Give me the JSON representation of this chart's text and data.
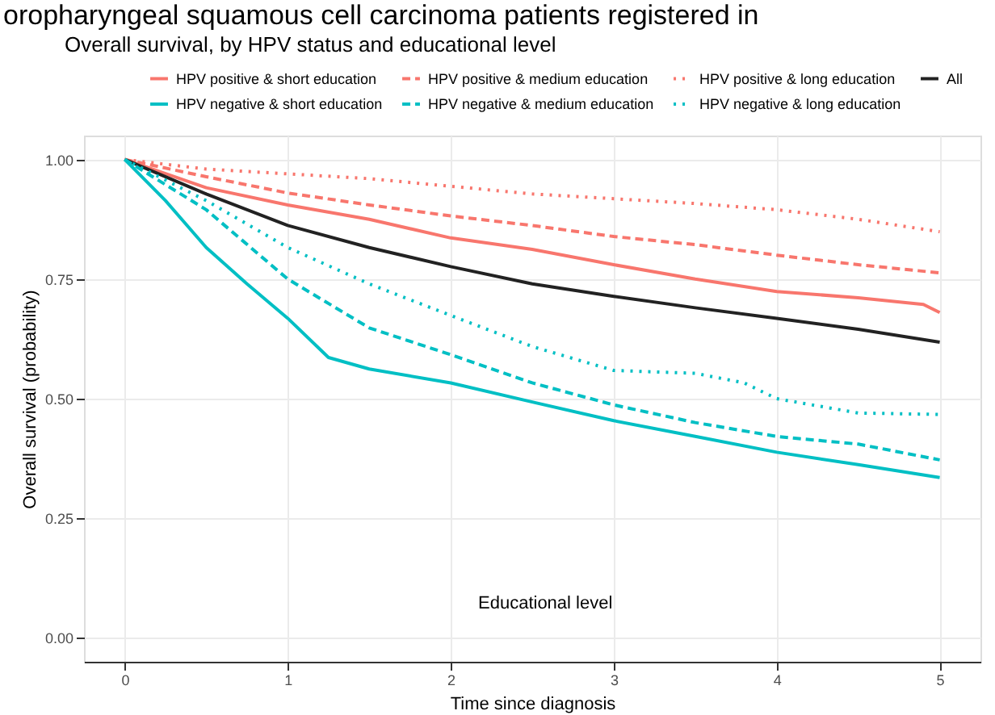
{
  "chart_data": {
    "type": "line",
    "title": "Overall survival, by HPV status and educational level",
    "xlabel": "Time since diagnosis",
    "ylabel": "Overall survival (probability)",
    "annotations": [
      "oropharyngeal squamous cell carcinoma patients registered in",
      "Educational level"
    ],
    "xlim": [
      -0.25,
      5.25
    ],
    "xticks": [
      0,
      1,
      2,
      3,
      4,
      5
    ],
    "ylim": [
      -0.05,
      1.05
    ],
    "yticks": [
      {
        "value": 0,
        "label": "0.00"
      },
      {
        "value": 0.25,
        "label": "0.25"
      },
      {
        "value": 0.5,
        "label": "0.50"
      },
      {
        "value": 0.75,
        "label": "0.75"
      },
      {
        "value": 1,
        "label": "1.00"
      }
    ],
    "grid": true,
    "legend": "top",
    "series": [
      {
        "name": "HPV positive & short education",
        "color": "#f8766d",
        "line_style": "solid",
        "x": [
          0,
          0.5,
          1,
          1.5,
          2,
          2.5,
          3,
          3.5,
          4,
          4.5,
          4.9,
          5
        ],
        "values": [
          1.0,
          0.941,
          0.905,
          0.875,
          0.836,
          0.812,
          0.78,
          0.75,
          0.724,
          0.711,
          0.697,
          0.68
        ]
      },
      {
        "name": "HPV positive & medium education",
        "color": "#f8766d",
        "line_style": "dashed",
        "x": [
          0,
          0.5,
          1,
          1.5,
          2,
          2.5,
          3,
          3.5,
          4,
          4.5,
          5
        ],
        "values": [
          1.0,
          0.964,
          0.93,
          0.905,
          0.882,
          0.862,
          0.839,
          0.822,
          0.8,
          0.78,
          0.763
        ]
      },
      {
        "name": "HPV positive & long education",
        "color": "#f8766d",
        "line_style": "dotted",
        "x": [
          0,
          0.5,
          1,
          1.5,
          2,
          2.5,
          3,
          3.5,
          4,
          4.5,
          5
        ],
        "values": [
          1.0,
          0.98,
          0.97,
          0.96,
          0.944,
          0.928,
          0.918,
          0.908,
          0.895,
          0.875,
          0.849
        ]
      },
      {
        "name": "All",
        "color": "#222222",
        "line_style": "solid",
        "x": [
          0,
          0.5,
          1,
          1.5,
          2,
          2.5,
          3,
          3.5,
          4,
          4.5,
          5
        ],
        "values": [
          1.0,
          0.928,
          0.862,
          0.816,
          0.776,
          0.74,
          0.714,
          0.69,
          0.668,
          0.645,
          0.618
        ]
      },
      {
        "name": "HPV negative & short education",
        "color": "#00bfc4",
        "line_style": "solid",
        "x": [
          0,
          0.25,
          0.5,
          0.75,
          1,
          1.25,
          1.5,
          2,
          2.5,
          3,
          3.5,
          4,
          4.5,
          5
        ],
        "values": [
          1.0,
          0.914,
          0.816,
          0.74,
          0.668,
          0.586,
          0.562,
          0.533,
          0.493,
          0.454,
          0.421,
          0.388,
          0.362,
          0.335
        ]
      },
      {
        "name": "HPV negative & medium education",
        "color": "#00bfc4",
        "line_style": "dashed",
        "x": [
          0,
          0.5,
          1,
          1.5,
          2,
          2.5,
          3,
          3.5,
          4,
          4.5,
          5
        ],
        "values": [
          1.0,
          0.895,
          0.75,
          0.648,
          0.592,
          0.533,
          0.487,
          0.45,
          0.421,
          0.405,
          0.372
        ]
      },
      {
        "name": "HPV negative & long education",
        "color": "#00bfc4",
        "line_style": "dotted",
        "x": [
          0,
          0.5,
          1,
          1.5,
          2,
          2.5,
          3,
          3.5,
          3.8,
          4,
          4.5,
          5
        ],
        "values": [
          1.0,
          0.914,
          0.816,
          0.74,
          0.674,
          0.609,
          0.559,
          0.553,
          0.533,
          0.5,
          0.47,
          0.467
        ]
      }
    ]
  }
}
